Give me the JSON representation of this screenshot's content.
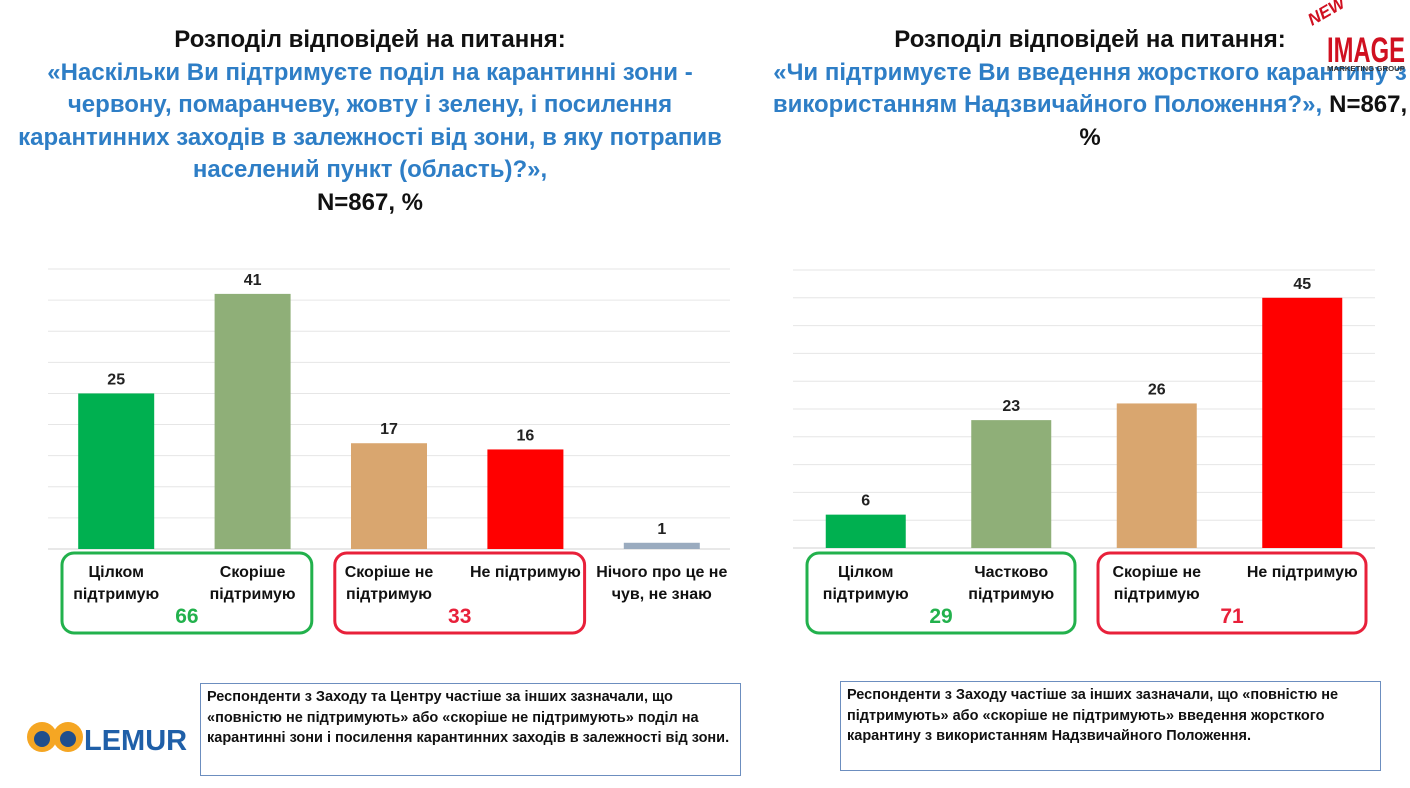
{
  "chart_data": [
    {
      "type": "bar",
      "title": "Розподіл відповідей на питання:",
      "question": "«Наскільки Ви підтримуєте поділ на карантинні зони - червону, помаранчеву, жовту і зелену, і посилення карантинних заходів в залежності від зони, в яку потрапив населений пункт (область)?»,",
      "sample_note": "N=867, %",
      "categories": [
        "Цілком підтримую",
        "Скоріше підтримую",
        "Скоріше не підтримую",
        "Не підтримую",
        "Нічого про це не чув, не знаю"
      ],
      "values": [
        25,
        41,
        17,
        16,
        1
      ],
      "colors": [
        "#00b050",
        "#8faf78",
        "#d9a66f",
        "#ff0000",
        "#9aabbf"
      ],
      "ylim": [
        0,
        45
      ],
      "yticks": [
        0,
        5,
        10,
        15,
        20,
        25,
        30,
        35,
        40,
        45
      ],
      "grid": true,
      "groups": [
        {
          "total": 66,
          "color": "#22b14c"
        },
        {
          "total": 33,
          "color": "#e8203a"
        }
      ],
      "comment": "Респонденти з Заходу та Центру частіше за інших зазначали, що «повністю не підтримують» або «скоріше не підтримують» поділ на карантинні зони і посилення карантинних заходів в залежності від зони."
    },
    {
      "type": "bar",
      "title": "Розподіл відповідей на питання:",
      "question": "«Чи підтримуєте Ви введення жорсткого карантину з використанням Надзвичайного Положення?»,",
      "sample_note": "N=867, %",
      "categories": [
        "Цілком підтримую",
        "Частково підтримую",
        "Скоріше не підтримую",
        "Не підтримую"
      ],
      "values": [
        6,
        23,
        26,
        45
      ],
      "colors": [
        "#00b050",
        "#8faf78",
        "#d9a66f",
        "#ff0000"
      ],
      "ylim": [
        0,
        50
      ],
      "yticks": [
        0,
        5,
        10,
        15,
        20,
        25,
        30,
        35,
        40,
        45,
        50
      ],
      "grid": true,
      "groups": [
        {
          "total": 29,
          "color": "#22b14c"
        },
        {
          "total": 71,
          "color": "#e8203a"
        }
      ],
      "comment": "Респонденти з Заходу частіше за інших зазначали, що «повністю не підтримують» або «скоріше не підтримують» введення жорсткого карантину з використанням Надзвичайного Положення."
    }
  ],
  "logos": {
    "lemur": "LEMUR",
    "new": "NEW",
    "image": "IMAGE",
    "image_sub": "MARKETING GROUP"
  }
}
